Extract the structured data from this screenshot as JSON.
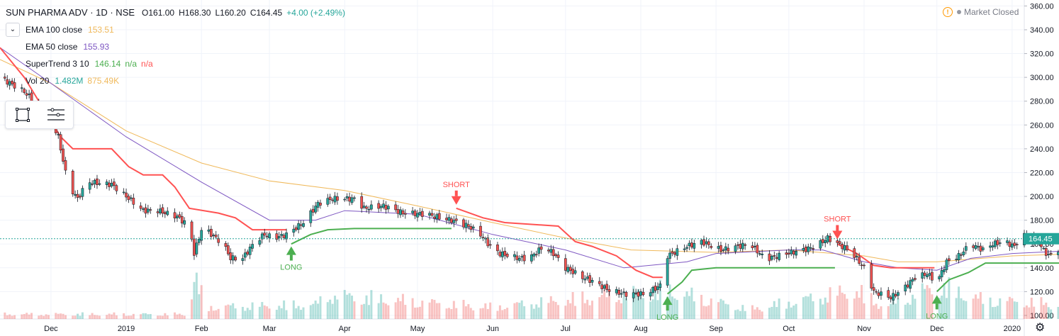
{
  "header": {
    "symbol": "SUN PHARMA ADV · 1D · NSE",
    "open": "O161.00",
    "high": "H168.30",
    "low": "L160.20",
    "close": "C164.45",
    "change": "+4.00 (+2.49%)"
  },
  "indicators": [
    {
      "name": "EMA 100 close",
      "values": [
        "153.51"
      ],
      "color": "#f0b95b"
    },
    {
      "name": "EMA 50 close",
      "values": [
        "155.93"
      ],
      "color": "#7e57c2"
    },
    {
      "name": "SuperTrend 3 10",
      "values": [
        "146.14",
        "n/a",
        "n/a"
      ],
      "color": "#4caf50"
    },
    {
      "name": "Vol 20",
      "values": [
        "1.482M",
        "875.49K"
      ],
      "color": "#26a69a"
    }
  ],
  "status": {
    "text": "Market Closed"
  },
  "colors": {
    "up": "#26a69a",
    "down": "#ef5350",
    "st_up": "#4caf50",
    "st_down": "#ff5252",
    "ema100": "#f0b95b",
    "ema50": "#7e57c2"
  },
  "icons": {
    "collapse": "chevron-down-icon",
    "rect_tool": "rectangle-icon",
    "settings_tool": "lines-icon",
    "warning": "warning-icon",
    "settings": "gear-icon"
  },
  "chart_data": {
    "type": "candlestick",
    "price_axis_ticks": [
      "360.00",
      "340.00",
      "320.00",
      "300.00",
      "280.00",
      "260.00",
      "240.00",
      "220.00",
      "200.00",
      "180.00",
      "160.00",
      "140.00",
      "120.00",
      "100.00"
    ],
    "last_price_label": "164.45",
    "ylim": [
      97,
      365
    ],
    "time_axis": [
      {
        "label": "Dec",
        "date": "2018-12-01"
      },
      {
        "label": "2019",
        "date": "2019-01-01"
      },
      {
        "label": "Feb",
        "date": "2019-02-01"
      },
      {
        "label": "Mar",
        "date": "2019-03-01"
      },
      {
        "label": "Apr",
        "date": "2019-04-01"
      },
      {
        "label": "May",
        "date": "2019-05-01"
      },
      {
        "label": "Jun",
        "date": "2019-06-01"
      },
      {
        "label": "Jul",
        "date": "2019-07-01"
      },
      {
        "label": "Aug",
        "date": "2019-08-01"
      },
      {
        "label": "Sep",
        "date": "2019-09-01"
      },
      {
        "label": "Oct",
        "date": "2019-10-01"
      },
      {
        "label": "Nov",
        "date": "2019-11-01"
      },
      {
        "label": "Dec",
        "date": "2019-12-01"
      },
      {
        "label": "2020",
        "date": "2020-01-01"
      }
    ],
    "x_start": "2018-11-10",
    "x_end": "2020-01-06",
    "close_path": [
      [
        "2018-11-10",
        300
      ],
      [
        "2018-11-20",
        288
      ],
      [
        "2018-12-01",
        265
      ],
      [
        "2018-12-04",
        250
      ],
      [
        "2018-12-08",
        210
      ],
      [
        "2018-12-12",
        198
      ],
      [
        "2018-12-16",
        212
      ],
      [
        "2018-12-26",
        210
      ],
      [
        "2019-01-04",
        195
      ],
      [
        "2019-01-08",
        188
      ],
      [
        "2019-01-14",
        188
      ],
      [
        "2019-01-22",
        183
      ],
      [
        "2019-01-25",
        178
      ],
      [
        "2019-01-27",
        176
      ],
      [
        "2019-01-29",
        152
      ],
      [
        "2019-02-01",
        172
      ],
      [
        "2019-02-04",
        170
      ],
      [
        "2019-02-10",
        160
      ],
      [
        "2019-02-13",
        148
      ],
      [
        "2019-02-18",
        148
      ],
      [
        "2019-02-23",
        162
      ],
      [
        "2019-02-27",
        168
      ],
      [
        "2019-03-03",
        165
      ],
      [
        "2019-03-08",
        168
      ],
      [
        "2019-03-15",
        178
      ],
      [
        "2019-03-21",
        194
      ],
      [
        "2019-03-27",
        198
      ],
      [
        "2019-04-05",
        198
      ],
      [
        "2019-04-09",
        190
      ],
      [
        "2019-04-17",
        192
      ],
      [
        "2019-04-25",
        186
      ],
      [
        "2019-05-05",
        185
      ],
      [
        "2019-05-10",
        182
      ],
      [
        "2019-05-15",
        180
      ],
      [
        "2019-05-22",
        175
      ],
      [
        "2019-05-27",
        168
      ],
      [
        "2019-05-31",
        158
      ],
      [
        "2019-06-04",
        152
      ],
      [
        "2019-06-12",
        148
      ],
      [
        "2019-06-16",
        148
      ],
      [
        "2019-06-22",
        158
      ],
      [
        "2019-06-26",
        152
      ],
      [
        "2019-07-01",
        140
      ],
      [
        "2019-07-08",
        132
      ],
      [
        "2019-07-13",
        128
      ],
      [
        "2019-07-18",
        122
      ],
      [
        "2019-07-25",
        118
      ],
      [
        "2019-07-30",
        118
      ],
      [
        "2019-08-03",
        118
      ],
      [
        "2019-08-09",
        125
      ],
      [
        "2019-08-12",
        150
      ],
      [
        "2019-08-20",
        158
      ],
      [
        "2019-08-26",
        162
      ],
      [
        "2019-09-03",
        155
      ],
      [
        "2019-09-10",
        158
      ],
      [
        "2019-09-15",
        160
      ],
      [
        "2019-09-20",
        150
      ],
      [
        "2019-09-23",
        148
      ],
      [
        "2019-09-30",
        152
      ],
      [
        "2019-10-07",
        155
      ],
      [
        "2019-10-12",
        158
      ],
      [
        "2019-10-17",
        165
      ],
      [
        "2019-10-24",
        157
      ],
      [
        "2019-10-28",
        150
      ],
      [
        "2019-11-01",
        140
      ],
      [
        "2019-11-05",
        120
      ],
      [
        "2019-11-12",
        115
      ],
      [
        "2019-11-17",
        122
      ],
      [
        "2019-11-22",
        132
      ],
      [
        "2019-11-27",
        135
      ],
      [
        "2019-12-01",
        128
      ],
      [
        "2019-12-05",
        145
      ],
      [
        "2019-12-10",
        150
      ],
      [
        "2019-12-15",
        160
      ],
      [
        "2019-12-20",
        155
      ],
      [
        "2019-12-24",
        160
      ],
      [
        "2019-12-29",
        162
      ],
      [
        "2020-01-02",
        158
      ],
      [
        "2020-01-05",
        168
      ],
      [
        "2020-01-08",
        165
      ],
      [
        "2020-01-12",
        160
      ],
      [
        "2020-01-16",
        150
      ],
      [
        "2020-01-20",
        155
      ],
      [
        "2020-01-24",
        165
      ],
      [
        "2020-01-27",
        160
      ],
      [
        "2020-01-31",
        158
      ],
      [
        "2020-02-04",
        155
      ],
      [
        "2020-02-09",
        157
      ],
      [
        "2020-02-12",
        164
      ]
    ],
    "ema100": [
      [
        "2018-11-10",
        315
      ],
      [
        "2018-12-01",
        295
      ],
      [
        "2019-01-01",
        255
      ],
      [
        "2019-02-01",
        228
      ],
      [
        "2019-03-01",
        213
      ],
      [
        "2019-04-01",
        205
      ],
      [
        "2019-05-01",
        192
      ],
      [
        "2019-06-01",
        178
      ],
      [
        "2019-07-01",
        165
      ],
      [
        "2019-07-28",
        155
      ],
      [
        "2019-09-01",
        153
      ],
      [
        "2019-10-01",
        155
      ],
      [
        "2019-11-01",
        150
      ],
      [
        "2019-11-15",
        145
      ],
      [
        "2019-12-01",
        145
      ],
      [
        "2020-01-01",
        150
      ],
      [
        "2020-02-12",
        153
      ]
    ],
    "ema50": [
      [
        "2018-11-10",
        325
      ],
      [
        "2018-12-01",
        295
      ],
      [
        "2019-01-01",
        250
      ],
      [
        "2019-02-01",
        212
      ],
      [
        "2019-03-01",
        180
      ],
      [
        "2019-03-20",
        180
      ],
      [
        "2019-04-01",
        188
      ],
      [
        "2019-05-01",
        185
      ],
      [
        "2019-06-01",
        168
      ],
      [
        "2019-07-01",
        155
      ],
      [
        "2019-07-25",
        140
      ],
      [
        "2019-08-20",
        145
      ],
      [
        "2019-09-01",
        152
      ],
      [
        "2019-10-01",
        155
      ],
      [
        "2019-10-15",
        155
      ],
      [
        "2019-11-01",
        145
      ],
      [
        "2019-11-15",
        140
      ],
      [
        "2019-12-01",
        138
      ],
      [
        "2019-12-15",
        148
      ],
      [
        "2020-01-01",
        152
      ],
      [
        "2020-02-12",
        156
      ]
    ],
    "supertrend_down": [
      [
        "2018-11-10",
        325
      ],
      [
        "2018-11-20",
        300
      ],
      [
        "2018-12-05",
        250
      ],
      [
        "2018-12-10",
        240
      ],
      [
        "2018-12-26",
        240
      ],
      [
        "2019-01-02",
        225
      ],
      [
        "2019-01-08",
        218
      ],
      [
        "2019-01-16",
        218
      ],
      [
        "2019-01-21",
        208
      ],
      [
        "2019-01-27",
        190
      ],
      [
        "2019-02-08",
        186
      ],
      [
        "2019-02-15",
        182
      ],
      [
        "2019-02-22",
        172
      ],
      [
        "2019-03-08",
        172
      ]
    ],
    "supertrend_up": [
      [
        "2019-03-10",
        160
      ],
      [
        "2019-03-18",
        168
      ],
      [
        "2019-03-25",
        172
      ],
      [
        "2019-04-05",
        173
      ],
      [
        "2019-05-15",
        173
      ]
    ],
    "supertrend_down2": [
      [
        "2019-05-17",
        190
      ],
      [
        "2019-05-28",
        182
      ],
      [
        "2019-06-06",
        178
      ],
      [
        "2019-06-28",
        175
      ],
      [
        "2019-07-05",
        162
      ],
      [
        "2019-07-12",
        158
      ],
      [
        "2019-07-22",
        150
      ],
      [
        "2019-07-30",
        138
      ],
      [
        "2019-08-06",
        132
      ],
      [
        "2019-08-10",
        132
      ]
    ],
    "supertrend_up2": [
      [
        "2019-08-12",
        118
      ],
      [
        "2019-08-18",
        128
      ],
      [
        "2019-08-22",
        138
      ],
      [
        "2019-09-01",
        140
      ],
      [
        "2019-10-20",
        140
      ]
    ],
    "supertrend_down3": [
      [
        "2019-10-21",
        160
      ],
      [
        "2019-10-29",
        152
      ],
      [
        "2019-11-05",
        142
      ],
      [
        "2019-11-12",
        140
      ],
      [
        "2019-11-22",
        140
      ],
      [
        "2019-11-30",
        140
      ]
    ],
    "supertrend_up3": [
      [
        "2019-12-01",
        120
      ],
      [
        "2019-12-06",
        130
      ],
      [
        "2019-12-14",
        136
      ],
      [
        "2019-12-21",
        144
      ],
      [
        "2020-02-09",
        144
      ],
      [
        "2020-02-12",
        146
      ]
    ],
    "signals": [
      {
        "type": "LONG",
        "date": "2019-03-10",
        "price": 158
      },
      {
        "type": "SHORT",
        "date": "2019-05-17",
        "price": 193
      },
      {
        "type": "LONG",
        "date": "2019-08-12",
        "price": 116
      },
      {
        "type": "SHORT",
        "date": "2019-10-21",
        "price": 164
      },
      {
        "type": "LONG",
        "date": "2019-12-01",
        "price": 117
      }
    ],
    "volume_ylim": [
      0,
      20
    ],
    "volume_profile": [
      [
        "2018-11-10",
        2
      ],
      [
        "2019-01-27",
        2
      ],
      [
        "2019-01-29",
        18
      ],
      [
        "2019-02-03",
        5
      ],
      [
        "2019-03-20",
        6
      ],
      [
        "2019-03-25",
        10
      ],
      [
        "2019-05-31",
        5
      ],
      [
        "2019-08-12",
        12
      ],
      [
        "2019-09-15",
        4
      ],
      [
        "2019-10-28",
        12
      ],
      [
        "2019-11-10",
        5
      ],
      [
        "2019-12-01",
        14
      ],
      [
        "2019-12-20",
        8
      ],
      [
        "2020-01-10",
        7
      ],
      [
        "2020-02-12",
        3
      ]
    ],
    "grid": true,
    "legend_position": "top-left"
  }
}
